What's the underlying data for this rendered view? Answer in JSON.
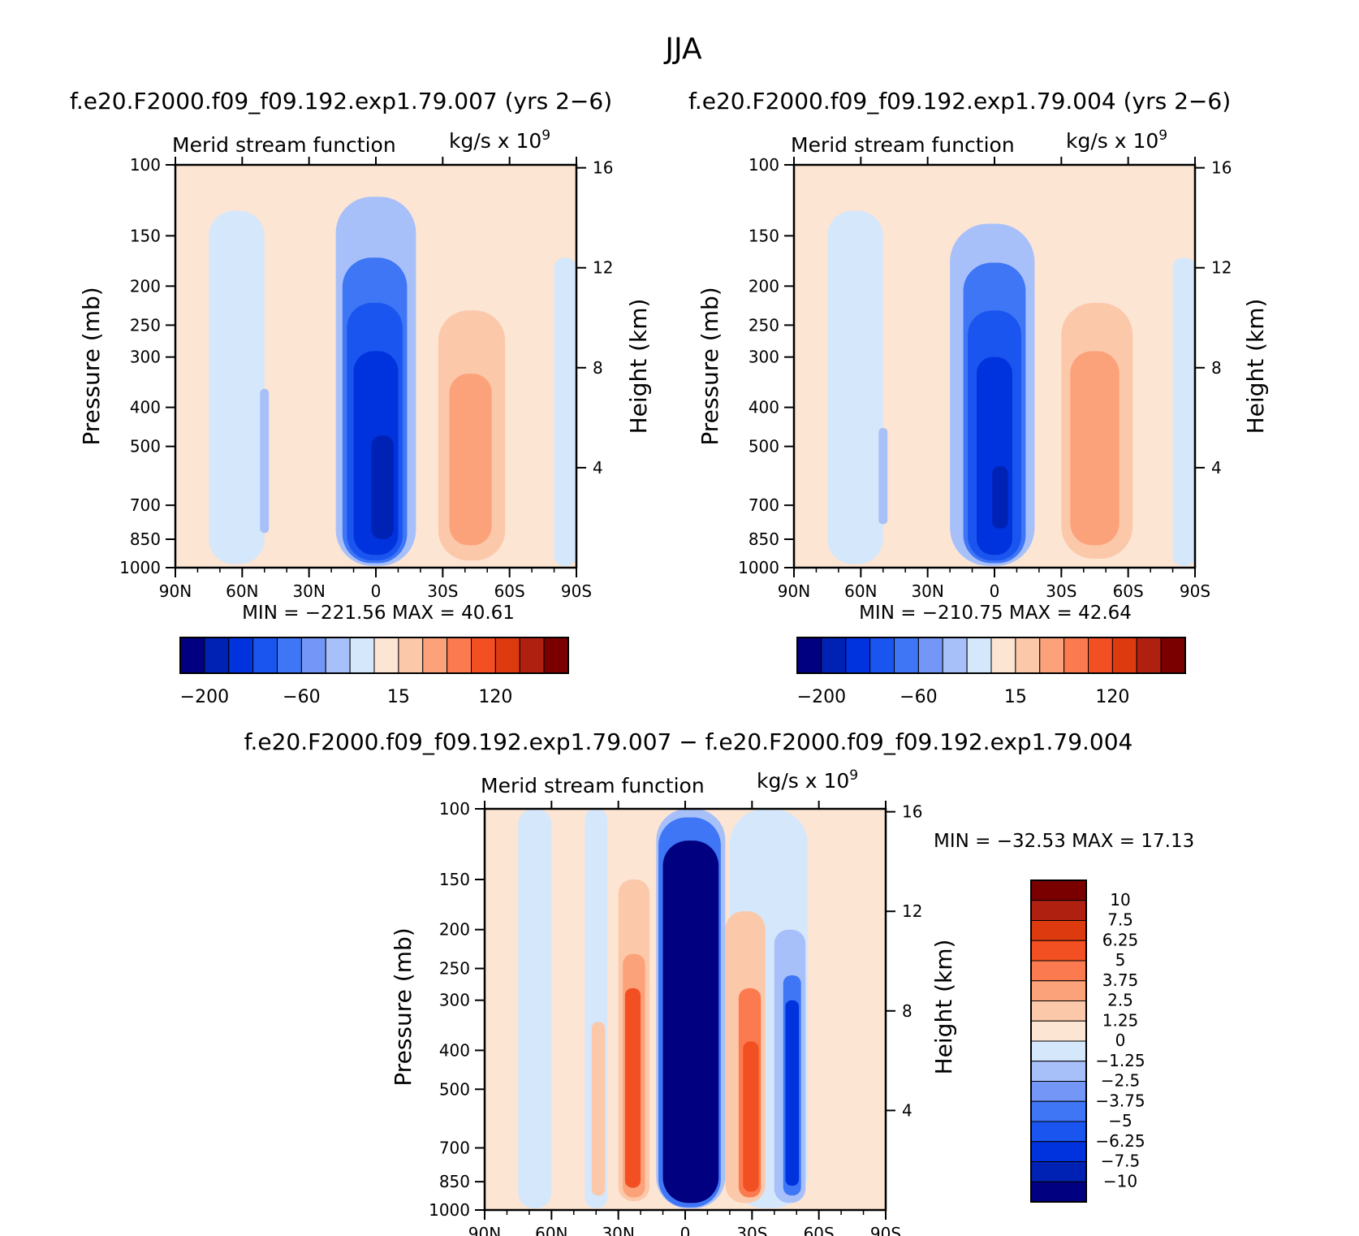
{
  "figure_title": "JJA",
  "panels": [
    {
      "heading": "f.e20.F2000.f09_f09.192.exp1.79.007 (yrs 2−6)",
      "label_left": "Merid stream function",
      "label_right": "kg/s x 10",
      "label_right_exp": "9",
      "ylabel": "Pressure (mb)",
      "ylabel_right": "Height (km)",
      "stats": "MIN = −221.56   MAX =   40.61"
    },
    {
      "heading": "f.e20.F2000.f09_f09.192.exp1.79.004 (yrs 2−6)",
      "label_left": "Merid stream function",
      "label_right": "kg/s x 10",
      "label_right_exp": "9",
      "ylabel": "Pressure (mb)",
      "ylabel_right": "Height (km)",
      "stats": "MIN = −210.75   MAX =   42.64"
    },
    {
      "heading": "f.e20.F2000.f09_f09.192.exp1.79.007 − f.e20.F2000.f09_f09.192.exp1.79.004",
      "label_left": "Merid stream function",
      "label_right": "kg/s x 10",
      "label_right_exp": "9",
      "ylabel": "Pressure (mb)",
      "ylabel_right": "Height (km)",
      "stats": "MIN = −32.53   MAX =   17.13"
    }
  ],
  "colorbar_top": {
    "colors": [
      "#000080",
      "#0022b4",
      "#0033dd",
      "#1a55f0",
      "#3f76f5",
      "#7396f7",
      "#a8c0fa",
      "#d5e7fb",
      "#fde5d4",
      "#fcc8aa",
      "#fca27a",
      "#fb7a4f",
      "#f25022",
      "#de3a10",
      "#b02010",
      "#7a0000"
    ],
    "tick_labels": [
      "−200",
      "−60",
      "15",
      "120"
    ]
  },
  "colorbar_diff": {
    "colors": [
      "#000080",
      "#0022b4",
      "#0033dd",
      "#1a55f0",
      "#3f76f5",
      "#7396f7",
      "#a8c0fa",
      "#d5e7fb",
      "#fde5d4",
      "#fcc8aa",
      "#fca27a",
      "#fb7a4f",
      "#f25022",
      "#de3a10",
      "#b02010",
      "#7a0000"
    ],
    "tick_labels": [
      "10",
      "7.5",
      "6.25",
      "5",
      "3.75",
      "2.5",
      "1.25",
      "0",
      "−1.25",
      "−2.5",
      "−3.75",
      "−5",
      "−6.25",
      "−7.5",
      "−10"
    ]
  },
  "chart_data": [
    {
      "type": "contour",
      "title": "f.e20.F2000.f09_f09.192.exp1.79.007 (yrs 2−6)",
      "variable": "Merid stream function",
      "units": "kg/s x 10^9",
      "x_ticks": [
        "90N",
        "60N",
        "30N",
        "0",
        "30S",
        "60S",
        "90S"
      ],
      "x_range": [
        90,
        -90
      ],
      "y_ticks": [
        100,
        150,
        200,
        250,
        300,
        400,
        500,
        700,
        850,
        1000
      ],
      "y_range": [
        100,
        1000
      ],
      "y_scale": "log",
      "y_right_ticks": [
        16,
        12,
        8,
        4
      ],
      "min": -221.56,
      "max": 40.61,
      "cells": [
        {
          "lat1": 75,
          "lat2": 50,
          "p1": 130,
          "p2": 980,
          "level": -1.0
        },
        {
          "lat1": 35,
          "lat2": 20,
          "p1": 190,
          "p2": 950,
          "level": 1.0
        },
        {
          "lat1": 52,
          "lat2": 48,
          "p1": 360,
          "p2": 820,
          "level": -2.0
        },
        {
          "lat1": 18,
          "lat2": -18,
          "p1": 120,
          "p2": 990,
          "level": -2.5
        },
        {
          "lat1": 15,
          "lat2": -14,
          "p1": 170,
          "p2": 975,
          "level": -4.0
        },
        {
          "lat1": 13,
          "lat2": -12,
          "p1": 220,
          "p2": 960,
          "level": -5.5
        },
        {
          "lat1": 10,
          "lat2": -10,
          "p1": 290,
          "p2": 930,
          "level": -7.0
        },
        {
          "lat1": 2,
          "lat2": -8,
          "p1": 470,
          "p2": 850,
          "level": -8.0
        },
        {
          "lat1": -28,
          "lat2": -58,
          "p1": 230,
          "p2": 960,
          "level": 1.5
        },
        {
          "lat1": -33,
          "lat2": -52,
          "p1": 330,
          "p2": 880,
          "level": 2.5
        },
        {
          "lat1": -80,
          "lat2": -90,
          "p1": 170,
          "p2": 990,
          "level": -1.0
        }
      ]
    },
    {
      "type": "contour",
      "title": "f.e20.F2000.f09_f09.192.exp1.79.004 (yrs 2−6)",
      "variable": "Merid stream function",
      "units": "kg/s x 10^9",
      "x_ticks": [
        "90N",
        "60N",
        "30N",
        "0",
        "30S",
        "60S",
        "90S"
      ],
      "x_range": [
        90,
        -90
      ],
      "y_ticks": [
        100,
        150,
        200,
        250,
        300,
        400,
        500,
        700,
        850,
        1000
      ],
      "y_range": [
        100,
        1000
      ],
      "y_scale": "log",
      "y_right_ticks": [
        16,
        12,
        8,
        4
      ],
      "min": -210.75,
      "max": 42.64,
      "cells": [
        {
          "lat1": 75,
          "lat2": 50,
          "p1": 130,
          "p2": 980,
          "level": -1.0
        },
        {
          "lat1": 32,
          "lat2": 20,
          "p1": 230,
          "p2": 950,
          "level": 1.0
        },
        {
          "lat1": 52,
          "lat2": 48,
          "p1": 450,
          "p2": 780,
          "level": -2.0
        },
        {
          "lat1": 20,
          "lat2": -18,
          "p1": 140,
          "p2": 990,
          "level": -2.5
        },
        {
          "lat1": 14,
          "lat2": -14,
          "p1": 175,
          "p2": 975,
          "level": -4.0
        },
        {
          "lat1": 12,
          "lat2": -12,
          "p1": 230,
          "p2": 960,
          "level": -5.5
        },
        {
          "lat1": 8,
          "lat2": -8,
          "p1": 300,
          "p2": 930,
          "level": -7.0
        },
        {
          "lat1": 1,
          "lat2": -6,
          "p1": 560,
          "p2": 800,
          "level": -8.0
        },
        {
          "lat1": -30,
          "lat2": -62,
          "p1": 220,
          "p2": 950,
          "level": 1.5
        },
        {
          "lat1": -34,
          "lat2": -56,
          "p1": 290,
          "p2": 880,
          "level": 2.5
        },
        {
          "lat1": -80,
          "lat2": -90,
          "p1": 170,
          "p2": 990,
          "level": -1.0
        }
      ]
    },
    {
      "type": "contour",
      "title": "f.e20.F2000.f09_f09.192.exp1.79.007 − f.e20.F2000.f09_f09.192.exp1.79.004",
      "variable": "Merid stream function",
      "units": "kg/s x 10^9",
      "x_ticks": [
        "90N",
        "60N",
        "30N",
        "0",
        "30S",
        "60S",
        "90S"
      ],
      "x_range": [
        90,
        -90
      ],
      "y_ticks": [
        100,
        150,
        200,
        250,
        300,
        400,
        500,
        700,
        850,
        1000
      ],
      "y_range": [
        100,
        1000
      ],
      "y_scale": "log",
      "y_right_ticks": [
        16,
        12,
        8,
        4
      ],
      "min": -32.53,
      "max": 17.13,
      "levels": [
        -10,
        -7.5,
        -6.25,
        -5,
        -3.75,
        -2.5,
        -1.25,
        0,
        1.25,
        2.5,
        3.75,
        5,
        6.25,
        7.5,
        10
      ],
      "cells": [
        {
          "lat1": 75,
          "lat2": 60,
          "p1": 100,
          "p2": 990,
          "level": -1.0
        },
        {
          "lat1": 45,
          "lat2": 35,
          "p1": 100,
          "p2": 990,
          "level": -1.0
        },
        {
          "lat1": 42,
          "lat2": 36,
          "p1": 340,
          "p2": 920,
          "level": 2.0
        },
        {
          "lat1": 30,
          "lat2": 16,
          "p1": 150,
          "p2": 950,
          "level": 2.0
        },
        {
          "lat1": 28,
          "lat2": 18,
          "p1": 230,
          "p2": 930,
          "level": 3.5
        },
        {
          "lat1": 27,
          "lat2": 20,
          "p1": 280,
          "p2": 880,
          "level": 5.0
        },
        {
          "lat1": 13,
          "lat2": -18,
          "p1": 100,
          "p2": 990,
          "level": -2.0
        },
        {
          "lat1": 12,
          "lat2": -16,
          "p1": 105,
          "p2": 985,
          "level": -5.0
        },
        {
          "lat1": 10,
          "lat2": -15,
          "p1": 120,
          "p2": 960,
          "level": -11.0
        },
        {
          "lat1": -20,
          "lat2": -55,
          "p1": 100,
          "p2": 990,
          "level": -1.0
        },
        {
          "lat1": -18,
          "lat2": -36,
          "p1": 180,
          "p2": 960,
          "level": 2.0
        },
        {
          "lat1": -24,
          "lat2": -34,
          "p1": 280,
          "p2": 930,
          "level": 4.0
        },
        {
          "lat1": -26,
          "lat2": -33,
          "p1": 380,
          "p2": 900,
          "level": 6.0
        },
        {
          "lat1": -40,
          "lat2": -54,
          "p1": 200,
          "p2": 960,
          "level": -2.0
        },
        {
          "lat1": -44,
          "lat2": -52,
          "p1": 260,
          "p2": 920,
          "level": -4.5
        },
        {
          "lat1": -45,
          "lat2": -51,
          "p1": 300,
          "p2": 870,
          "level": -6.5
        }
      ]
    }
  ]
}
